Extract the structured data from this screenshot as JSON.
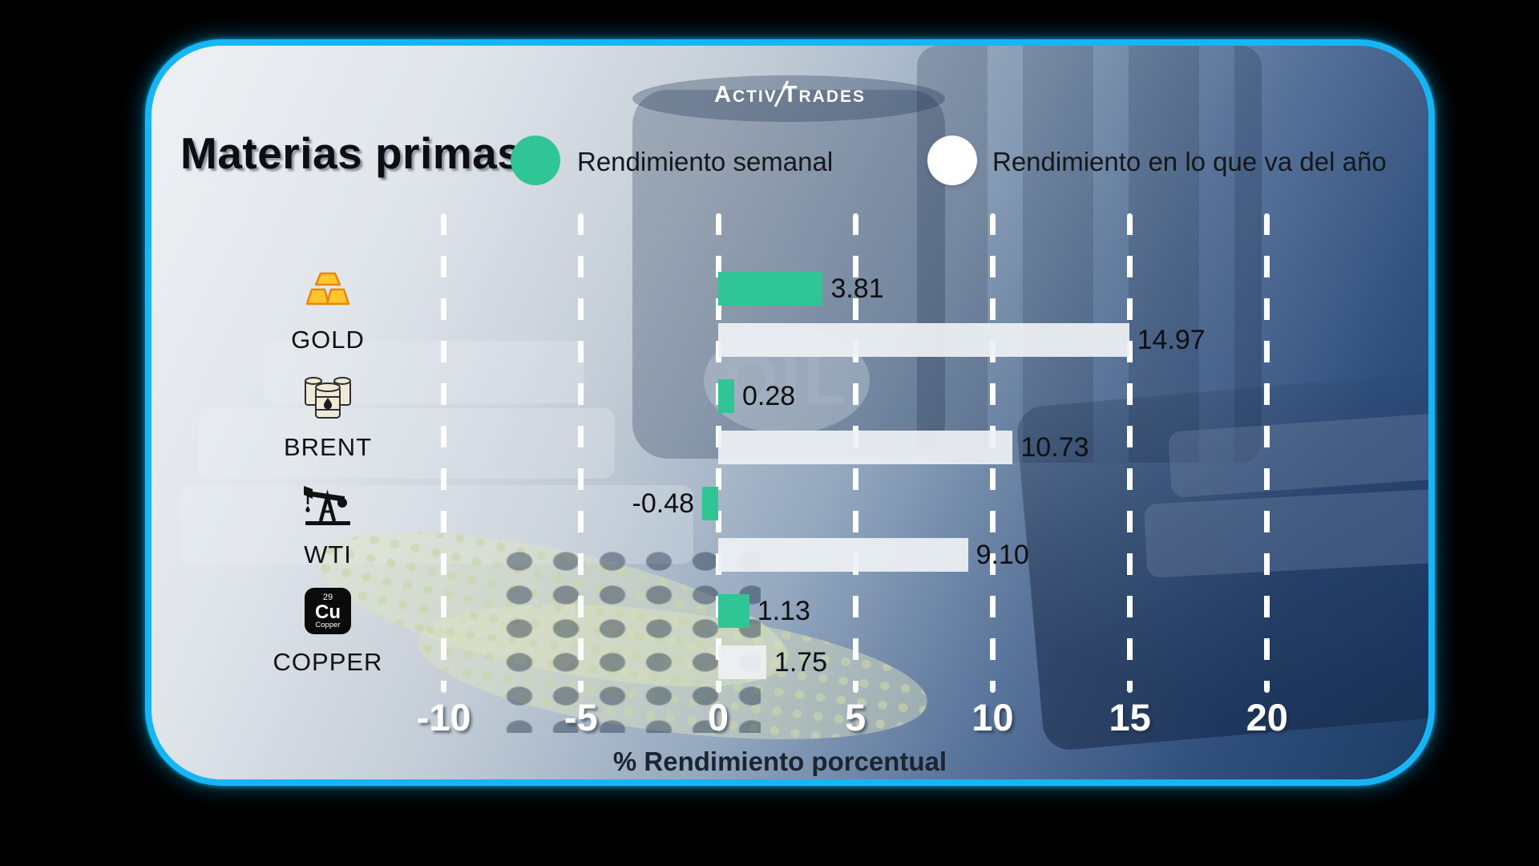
{
  "brand": {
    "logo_left": "Activ",
    "logo_right": "Trades"
  },
  "header": {
    "title": "Materias primas",
    "legend": [
      {
        "label": "Rendimiento semanal",
        "color": "#2fc594"
      },
      {
        "label": "Rendimiento en lo que va del año",
        "color": "#ffffff"
      }
    ]
  },
  "chart_data": {
    "type": "bar",
    "orientation": "horizontal",
    "title": "Materias primas",
    "categories": [
      "GOLD",
      "BRENT",
      "WTI",
      "COPPER"
    ],
    "series": [
      {
        "name": "Rendimiento semanal",
        "color": "#2fc594",
        "values": [
          3.81,
          0.28,
          -0.48,
          1.13
        ]
      },
      {
        "name": "Rendimiento en lo que va del año",
        "color": "#eef1f4",
        "values": [
          14.97,
          10.73,
          9.1,
          1.75
        ]
      }
    ],
    "xlabel": "% Rendimiento porcentual",
    "xticks": [
      -10,
      -5,
      0,
      5,
      10,
      15,
      20
    ],
    "xlim": [
      -12.5,
      22.5
    ],
    "grid": "vertical-dashed-white",
    "legend_position": "top",
    "value_label_format": "0.00",
    "icons": [
      "gold-bars",
      "oil-barrels",
      "oil-pump-jack",
      "copper-element"
    ],
    "copper_tile": {
      "atomic_number": "29",
      "symbol": "Cu",
      "name": "Copper"
    },
    "background_watermark": "OIL"
  },
  "colors": {
    "panel_border": "#17b5f6",
    "weekly_bar": "#2fc594",
    "ytd_bar": "#eef1f4",
    "tick_text": "#ffffff",
    "value_text": "#0d0f12",
    "background_outside": "#000000"
  }
}
